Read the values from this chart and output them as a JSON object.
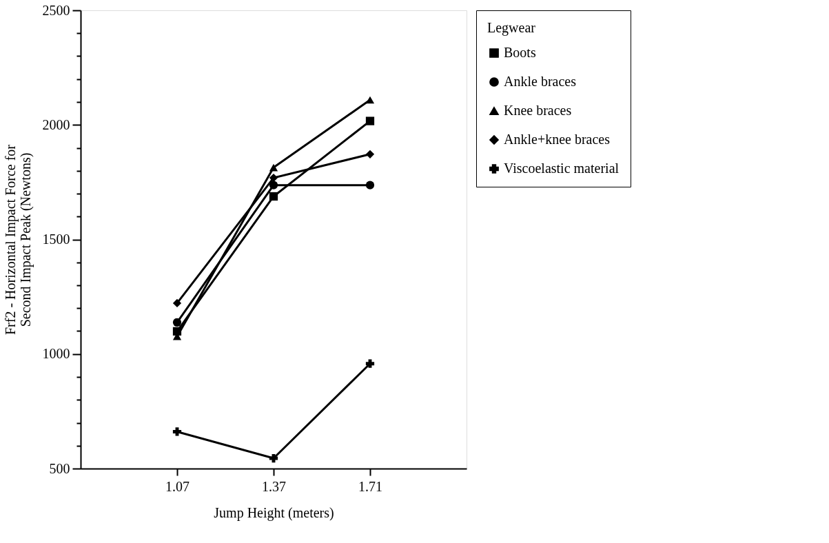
{
  "chart_data": {
    "type": "line",
    "xlabel": "Jump Height (meters)",
    "ylabel": "Frf2 - Horizontal Impact Force for\nSecond Impact Peak (Newtons)",
    "legend_title": "Legwear",
    "categories": [
      "1.07",
      "1.37",
      "1.71"
    ],
    "series": [
      {
        "name": "Boots",
        "color": "#000000",
        "marker": "square",
        "values": [
          1099,
          1688,
          2017
        ]
      },
      {
        "name": "Ankle braces",
        "color": "#000000",
        "marker": "circle",
        "values": [
          1138,
          1737,
          1737
        ]
      },
      {
        "name": "Knee braces",
        "color": "#000000",
        "marker": "triangle",
        "values": [
          1077,
          1814,
          2109
        ]
      },
      {
        "name": "Ankle+knee braces",
        "color": "#000000",
        "marker": "diamond",
        "values": [
          1222,
          1769,
          1872
        ]
      },
      {
        "name": "Viscoelastic material",
        "color": "#000000",
        "marker": "cross",
        "values": [
          661,
          545,
          958
        ]
      }
    ],
    "ylim": [
      500,
      2500
    ],
    "yticks": [
      500,
      {
        "value": 600,
        "label": null
      },
      {
        "value": 700,
        "label": null
      },
      {
        "value": 800,
        "label": null
      },
      {
        "value": 900,
        "label": null
      },
      1000,
      {
        "value": 1100,
        "label": null
      },
      {
        "value": 1200,
        "label": null
      },
      {
        "value": 1300,
        "label": null
      },
      {
        "value": 1400,
        "label": null
      },
      1500,
      {
        "value": 1600,
        "label": null
      },
      {
        "value": 1700,
        "label": null
      },
      {
        "value": 1800,
        "label": null
      },
      {
        "value": 1900,
        "label": null
      },
      2000,
      {
        "value": 2100,
        "label": null
      },
      {
        "value": 2200,
        "label": null
      },
      {
        "value": 2300,
        "label": null
      },
      {
        "value": 2400,
        "label": null
      },
      2500
    ],
    "grid": false,
    "legend": "right",
    "line_style": "solid"
  }
}
